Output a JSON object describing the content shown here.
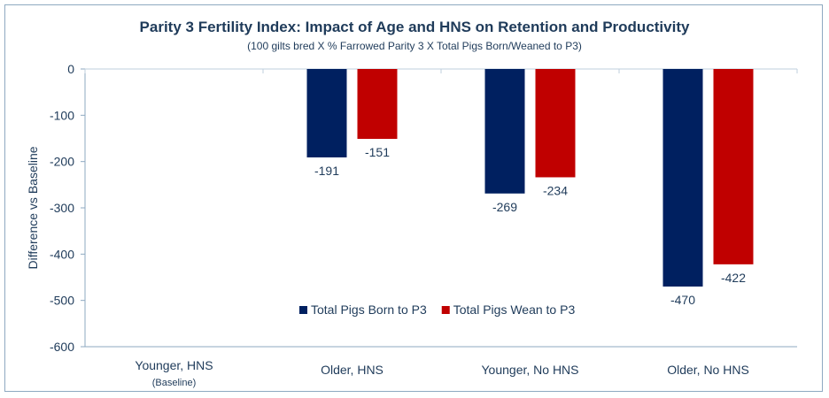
{
  "chart_data": {
    "type": "bar",
    "title": "Parity 3 Fertility Index: Impact of Age and HNS on Retention and Productivity",
    "subtitle": "(100 gilts bred X % Farrowed Parity 3 X Total Pigs Born/Weaned to P3)",
    "xlabel": "",
    "ylabel": "Difference vs Baseline",
    "ylim": [
      -600,
      0
    ],
    "yticks": [
      0,
      -100,
      -200,
      -300,
      -400,
      -500,
      -600
    ],
    "categories": [
      "Younger, HNS",
      "Older, HNS",
      "Younger, No HNS",
      "Older, No HNS"
    ],
    "category_sublabels": [
      "(Baseline)",
      "",
      "",
      ""
    ],
    "series": [
      {
        "name": "Total Pigs Born to P3",
        "color": "#002060",
        "values": [
          0,
          -191,
          -269,
          -470
        ]
      },
      {
        "name": "Total Pigs Wean to P3",
        "color": "#c00000",
        "values": [
          0,
          -151,
          -234,
          -422
        ]
      }
    ],
    "data_labels_shown_for_zero": false,
    "legend_position": "inside-bottom-center",
    "grid": false
  }
}
